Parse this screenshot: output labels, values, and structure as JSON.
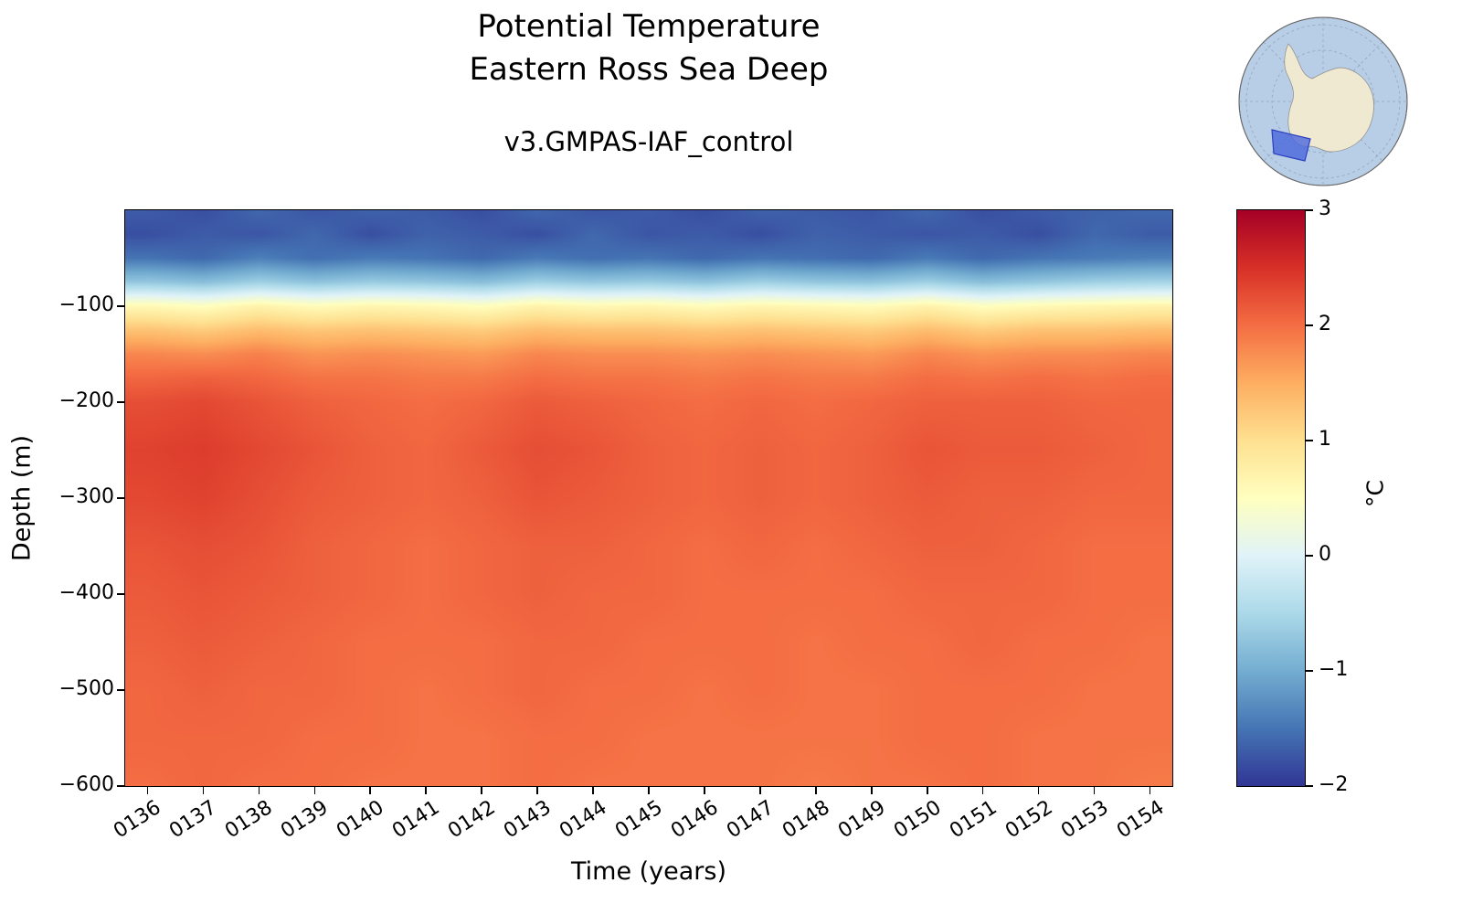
{
  "figure": {
    "title_line1": "Potential Temperature",
    "title_line2": "Eastern Ross Sea Deep",
    "subtitle": "v3.GMPAS-IAF_control",
    "xlabel": "Time (years)",
    "ylabel": "Depth (m)"
  },
  "colorbar": {
    "label": "°C",
    "tick_values": [
      3,
      2,
      1,
      0,
      -1,
      -2
    ],
    "tick_labels": [
      "3",
      "2",
      "1",
      "0",
      "−1",
      "−2"
    ],
    "min": -2,
    "max": 3
  },
  "inset_map": {
    "ocean_color": "#b8cde6",
    "land_color": "#efe9d2",
    "coast_color": "#8a8a8a",
    "graticule_color": "#93a7bb",
    "highlight_fill": "#4a66dc",
    "highlight_edge": "#2b3fbf"
  },
  "chart_data": {
    "type": "heatmap",
    "title": "Potential Temperature",
    "region": "Eastern Ross Sea Deep",
    "run": "v3.GMPAS-IAF_control",
    "xlabel": "Time (years)",
    "ylabel": "Depth (m)",
    "units": "°C",
    "colormap": "RdYlBu_r",
    "colormap_stops": [
      "#313695",
      "#4575b4",
      "#74add1",
      "#abd9e9",
      "#e0f3f8",
      "#ffffbf",
      "#fee090",
      "#fdae61",
      "#f46d43",
      "#d73027",
      "#a50026"
    ],
    "value_range": [
      -2,
      3
    ],
    "x_range": [
      135.6,
      154.4
    ],
    "depth_range": [
      0,
      -600
    ],
    "years": [
      136,
      137,
      138,
      139,
      140,
      141,
      142,
      143,
      144,
      145,
      146,
      147,
      148,
      149,
      150,
      151,
      152,
      153,
      154
    ],
    "x_tick_labels": [
      "0136",
      "0137",
      "0138",
      "0139",
      "0140",
      "0141",
      "0142",
      "0143",
      "0144",
      "0145",
      "0146",
      "0147",
      "0148",
      "0149",
      "0150",
      "0151",
      "0152",
      "0153",
      "0154"
    ],
    "y_ticks": [
      -100,
      -200,
      -300,
      -400,
      -500,
      -600
    ],
    "y_tick_labels": [
      "−100",
      "−200",
      "−300",
      "−400",
      "−500",
      "−600"
    ],
    "depths_m": [
      0,
      -25,
      -50,
      -75,
      -100,
      -125,
      -150,
      -175,
      -200,
      -250,
      -300,
      -350,
      -400,
      -450,
      -500,
      -550,
      -600
    ],
    "values_degC": [
      [
        -1.7,
        -1.8,
        -1.6,
        -1.75,
        -1.65,
        -1.7,
        -1.8,
        -1.6,
        -1.75,
        -1.7,
        -1.8,
        -1.65,
        -1.7,
        -1.75,
        -1.6,
        -1.8,
        -1.7,
        -1.65,
        -1.6
      ],
      [
        -1.8,
        -1.7,
        -1.75,
        -1.6,
        -1.8,
        -1.65,
        -1.7,
        -1.8,
        -1.6,
        -1.75,
        -1.7,
        -1.8,
        -1.65,
        -1.7,
        -1.75,
        -1.7,
        -1.8,
        -1.6,
        -1.7
      ],
      [
        -1.5,
        -1.6,
        -1.4,
        -1.55,
        -1.45,
        -1.5,
        -1.6,
        -1.45,
        -1.55,
        -1.5,
        -1.6,
        -1.5,
        -1.55,
        -1.6,
        -1.45,
        -1.6,
        -1.5,
        -1.45,
        -1.4
      ],
      [
        -0.7,
        -0.8,
        -0.6,
        -0.75,
        -0.65,
        -0.7,
        -0.8,
        -0.6,
        -0.7,
        -0.65,
        -0.75,
        -0.6,
        -0.7,
        -0.75,
        -0.6,
        -0.8,
        -0.7,
        -0.6,
        -0.55
      ],
      [
        0.6,
        0.5,
        0.7,
        0.55,
        0.65,
        0.6,
        0.5,
        0.7,
        0.6,
        0.65,
        0.55,
        0.65,
        0.6,
        0.55,
        0.7,
        0.5,
        0.6,
        0.65,
        0.7
      ],
      [
        1.3,
        1.2,
        1.35,
        1.25,
        1.3,
        1.25,
        1.2,
        1.35,
        1.3,
        1.3,
        1.25,
        1.3,
        1.25,
        1.2,
        1.35,
        1.2,
        1.3,
        1.3,
        1.35
      ],
      [
        1.8,
        1.75,
        1.85,
        1.7,
        1.75,
        1.7,
        1.65,
        1.8,
        1.75,
        1.75,
        1.7,
        1.75,
        1.7,
        1.65,
        1.8,
        1.7,
        1.75,
        1.75,
        1.8
      ],
      [
        2.05,
        2.1,
        2.05,
        1.95,
        1.95,
        1.9,
        1.9,
        2.0,
        1.95,
        1.95,
        1.9,
        1.95,
        1.9,
        1.9,
        2.0,
        1.95,
        2.0,
        1.95,
        2.0
      ],
      [
        2.25,
        2.3,
        2.2,
        2.1,
        2.05,
        2.0,
        2.05,
        2.15,
        2.1,
        2.05,
        2.0,
        2.05,
        2.0,
        2.05,
        2.1,
        2.1,
        2.1,
        2.05,
        2.05
      ],
      [
        2.35,
        2.4,
        2.3,
        2.2,
        2.1,
        2.05,
        2.15,
        2.25,
        2.2,
        2.1,
        2.05,
        2.1,
        2.05,
        2.1,
        2.2,
        2.15,
        2.15,
        2.1,
        2.05
      ],
      [
        2.3,
        2.35,
        2.25,
        2.15,
        2.1,
        2.05,
        2.1,
        2.2,
        2.15,
        2.1,
        2.05,
        2.1,
        2.05,
        2.1,
        2.15,
        2.1,
        2.1,
        2.05,
        2.05
      ],
      [
        2.2,
        2.25,
        2.2,
        2.1,
        2.05,
        2.0,
        2.05,
        2.1,
        2.1,
        2.05,
        2.0,
        2.05,
        2.0,
        2.05,
        2.1,
        2.1,
        2.05,
        2.0,
        2.0
      ],
      [
        2.15,
        2.2,
        2.15,
        2.1,
        2.05,
        2.0,
        2.05,
        2.1,
        2.05,
        2.05,
        2.0,
        2.0,
        2.0,
        2.0,
        2.05,
        2.05,
        2.05,
        2.0,
        2.0
      ],
      [
        2.1,
        2.15,
        2.1,
        2.05,
        2.0,
        2.0,
        2.0,
        2.05,
        2.05,
        2.0,
        2.0,
        2.0,
        1.95,
        2.0,
        2.0,
        2.05,
        2.0,
        2.0,
        1.95
      ],
      [
        2.05,
        2.1,
        2.05,
        2.05,
        2.0,
        1.95,
        2.0,
        2.05,
        2.0,
        2.0,
        1.95,
        2.0,
        1.95,
        1.95,
        2.0,
        2.0,
        2.0,
        1.95,
        1.95
      ],
      [
        2.05,
        2.05,
        2.05,
        2.0,
        2.0,
        1.95,
        1.95,
        2.0,
        2.0,
        1.95,
        1.95,
        1.95,
        1.95,
        1.95,
        2.0,
        2.0,
        1.95,
        1.95,
        1.95
      ],
      [
        2.0,
        2.05,
        2.0,
        2.0,
        1.95,
        1.95,
        1.95,
        2.0,
        1.95,
        1.95,
        1.95,
        1.95,
        1.9,
        1.95,
        1.95,
        2.0,
        1.95,
        1.95,
        1.9
      ]
    ]
  }
}
